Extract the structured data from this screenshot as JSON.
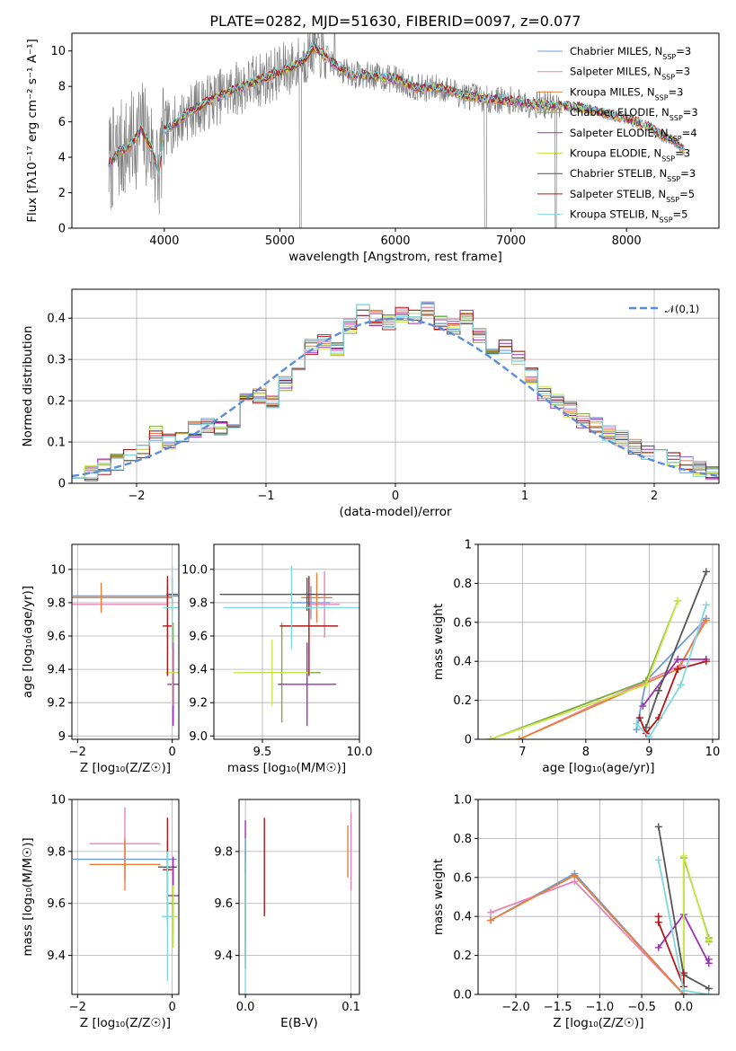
{
  "title": "PLATE=0282, MJD=51630, FIBERID=0097, z=0.077",
  "models": [
    {
      "name": "Chabrier MILES",
      "nssp": "3",
      "color": "#6f9bd8"
    },
    {
      "name": "Salpeter MILES",
      "nssp": "3",
      "color": "#e884b8"
    },
    {
      "name": "Kroupa MILES",
      "nssp": "3",
      "color": "#e8803a"
    },
    {
      "name": "Chabrier ELODIE",
      "nssp": "3",
      "color": "#7fa842"
    },
    {
      "name": "Salpeter ELODIE",
      "nssp": "4",
      "color": "#9b30b0"
    },
    {
      "name": "Kroupa ELODIE",
      "nssp": "3",
      "color": "#c8e84a"
    },
    {
      "name": "Chabrier STELIB",
      "nssp": "3",
      "color": "#555555"
    },
    {
      "name": "Salpeter STELIB",
      "nssp": "5",
      "color": "#b01818"
    },
    {
      "name": "Kroupa STELIB",
      "nssp": "5",
      "color": "#80d8e0"
    }
  ],
  "chart_data": [
    {
      "id": "spectrum",
      "type": "line",
      "xlabel": "wavelength [Angstrom, rest frame]",
      "ylabel": "Flux [fλ10⁻¹⁷ erg cm⁻² s⁻¹ A⁻¹]",
      "xlim": [
        3200,
        8800
      ],
      "ylim": [
        0,
        11
      ],
      "xticks": [
        4000,
        5000,
        6000,
        7000,
        8000
      ],
      "yticks": [
        0,
        2,
        4,
        6,
        8,
        10
      ],
      "continuum": [
        [
          3520,
          3.6
        ],
        [
          3600,
          4.3
        ],
        [
          3700,
          4.6
        ],
        [
          3800,
          5.6
        ],
        [
          3900,
          4.4
        ],
        [
          3950,
          3.0
        ],
        [
          4000,
          5.6
        ],
        [
          4100,
          5.9
        ],
        [
          4200,
          6.5
        ],
        [
          4400,
          7.2
        ],
        [
          4600,
          7.8
        ],
        [
          4800,
          8.3
        ],
        [
          5000,
          8.8
        ],
        [
          5200,
          9.4
        ],
        [
          5300,
          10.3
        ],
        [
          5400,
          9.6
        ],
        [
          5600,
          8.7
        ],
        [
          5800,
          8.6
        ],
        [
          6000,
          8.4
        ],
        [
          6200,
          7.9
        ],
        [
          6400,
          7.9
        ],
        [
          6600,
          7.5
        ],
        [
          6800,
          7.3
        ],
        [
          7000,
          7.2
        ],
        [
          7200,
          7.0
        ],
        [
          7400,
          6.9
        ],
        [
          7600,
          6.8
        ],
        [
          7800,
          6.5
        ],
        [
          8000,
          6.2
        ],
        [
          8200,
          5.7
        ],
        [
          8300,
          5.2
        ],
        [
          8400,
          5.0
        ],
        [
          8500,
          4.4
        ]
      ],
      "observed_range": [
        3520,
        7420
      ],
      "legend_position": "upper right"
    },
    {
      "id": "residual-histogram",
      "type": "line",
      "xlabel": "(data-model)/error",
      "ylabel": "Normed distribution",
      "xlim": [
        -2.5,
        2.5
      ],
      "ylim": [
        0,
        0.47
      ],
      "xticks": [
        -2,
        -1,
        0,
        1,
        2
      ],
      "yticks": [
        0.0,
        0.1,
        0.2,
        0.3,
        0.4
      ],
      "reference_label": "𝒩(0,1)",
      "reference_color": "#5b8ed6",
      "bins": [
        -2.5,
        -2.4,
        -2.3,
        -2.2,
        -2.1,
        -2.0,
        -1.9,
        -1.8,
        -1.7,
        -1.6,
        -1.5,
        -1.4,
        -1.3,
        -1.2,
        -1.1,
        -1.0,
        -0.9,
        -0.8,
        -0.7,
        -0.6,
        -0.5,
        -0.4,
        -0.3,
        -0.2,
        -0.1,
        0.0,
        0.1,
        0.2,
        0.3,
        0.4,
        0.5,
        0.6,
        0.7,
        0.8,
        0.9,
        1.0,
        1.1,
        1.2,
        1.3,
        1.4,
        1.5,
        1.6,
        1.7,
        1.8,
        1.9,
        2.0,
        2.1,
        2.2,
        2.3,
        2.4,
        2.5
      ],
      "heights": [
        0.018,
        0.025,
        0.04,
        0.05,
        0.062,
        0.075,
        0.12,
        0.1,
        0.115,
        0.13,
        0.14,
        0.13,
        0.135,
        0.22,
        0.21,
        0.2,
        0.24,
        0.26,
        0.33,
        0.34,
        0.32,
        0.38,
        0.42,
        0.4,
        0.39,
        0.41,
        0.4,
        0.425,
        0.39,
        0.38,
        0.4,
        0.36,
        0.33,
        0.33,
        0.3,
        0.26,
        0.22,
        0.2,
        0.18,
        0.15,
        0.14,
        0.12,
        0.11,
        0.09,
        0.075,
        0.065,
        0.055,
        0.045,
        0.035,
        0.025
      ],
      "legend_position": "upper right"
    },
    {
      "id": "age-vs-Z",
      "type": "scatter",
      "xlabel": "Z [log₁₀(Z/Z☉)]",
      "ylabel": "age  [log₁₀(age/yr)]",
      "xlim": [
        -2.12,
        0.14
      ],
      "ylim": [
        8.98,
        10.15
      ],
      "xticks": [
        -2,
        0
      ],
      "yticks": [
        9.0,
        9.2,
        9.4,
        9.6,
        9.8,
        10.0
      ],
      "points": [
        {
          "model": 0,
          "x": -0.1,
          "xerr": 2.0,
          "y": 9.84,
          "yerr": 0.06
        },
        {
          "model": 1,
          "x": -1.5,
          "xerr": 1.4,
          "y": 9.79,
          "yerr": 0.05
        },
        {
          "model": 2,
          "x": -1.5,
          "xerr": 1.5,
          "y": 9.83,
          "yerr": 0.09
        },
        {
          "model": 3,
          "x": 0.02,
          "xerr": 0.1,
          "y": 9.38,
          "yerr": 0.3
        },
        {
          "model": 4,
          "x": 0.02,
          "xerr": 0.12,
          "y": 9.31,
          "yerr": 0.25
        },
        {
          "model": 5,
          "x": 0.0,
          "xerr": 0.15,
          "y": 9.38,
          "yerr": 0.2
        },
        {
          "model": 6,
          "x": 0.0,
          "xerr": 0.12,
          "y": 9.85,
          "yerr": 0.1
        },
        {
          "model": 7,
          "x": -0.1,
          "xerr": 0.1,
          "y": 9.66,
          "yerr": 0.3
        },
        {
          "model": 8,
          "x": 0.0,
          "xerr": 0.2,
          "y": 9.77,
          "yerr": 0.25
        }
      ]
    },
    {
      "id": "age-vs-mass",
      "type": "scatter",
      "xlabel": "mass [log₁₀(M/M☉)]",
      "ylabel": "",
      "xlim": [
        9.25,
        10.0
      ],
      "ylim": [
        8.98,
        10.15
      ],
      "xticks": [
        9.5,
        10.0
      ],
      "yticks": [
        9.0,
        9.2,
        9.4,
        9.6,
        9.8,
        10.0
      ],
      "points": [
        {
          "model": 0,
          "x": 9.75,
          "xerr": 0.1,
          "y": 9.8,
          "yerr": 0.1
        },
        {
          "model": 1,
          "x": 9.82,
          "xerr": 0.08,
          "y": 9.79,
          "yerr": 0.2
        },
        {
          "model": 2,
          "x": 9.78,
          "xerr": 0.08,
          "y": 9.83,
          "yerr": 0.15
        },
        {
          "model": 3,
          "x": 9.6,
          "xerr": 0.2,
          "y": 9.38,
          "yerr": 0.3
        },
        {
          "model": 4,
          "x": 9.73,
          "xerr": 0.15,
          "y": 9.31,
          "yerr": 0.25
        },
        {
          "model": 5,
          "x": 9.55,
          "xerr": 0.2,
          "y": 9.38,
          "yerr": 0.2
        },
        {
          "model": 6,
          "x": 9.73,
          "xerr": 0.45,
          "y": 9.85,
          "yerr": 0.1
        },
        {
          "model": 7,
          "x": 9.74,
          "xerr": 0.15,
          "y": 9.66,
          "yerr": 0.3
        },
        {
          "model": 8,
          "x": 9.65,
          "xerr": 0.35,
          "y": 9.77,
          "yerr": 0.25
        }
      ]
    },
    {
      "id": "weight-vs-age",
      "type": "line",
      "xlabel": "age  [log₁₀(age/yr)]",
      "ylabel": "mass weight",
      "xlim": [
        6.3,
        10.1
      ],
      "ylim": [
        0,
        1.0
      ],
      "xticks": [
        7,
        8,
        9,
        10
      ],
      "yticks": [
        0.0,
        0.2,
        0.4,
        0.6,
        0.8,
        1.0
      ],
      "series": [
        {
          "model": 0,
          "points": [
            [
              8.8,
              0.05
            ],
            [
              8.95,
              0.3
            ],
            [
              9.9,
              0.62
            ]
          ]
        },
        {
          "model": 1,
          "points": [
            [
              6.95,
              0.0
            ],
            [
              9.5,
              0.38
            ],
            [
              9.85,
              0.6
            ]
          ]
        },
        {
          "model": 2,
          "points": [
            [
              6.95,
              0.0
            ],
            [
              9.45,
              0.36
            ],
            [
              9.9,
              0.61
            ]
          ]
        },
        {
          "model": 3,
          "points": [
            [
              6.5,
              0.0
            ],
            [
              8.95,
              0.3
            ],
            [
              9.45,
              0.71
            ]
          ]
        },
        {
          "model": 4,
          "points": [
            [
              8.9,
              0.17
            ],
            [
              9.45,
              0.41
            ],
            [
              9.9,
              0.41
            ]
          ]
        },
        {
          "model": 5,
          "points": [
            [
              6.5,
              0.0
            ],
            [
              8.95,
              0.28
            ],
            [
              9.45,
              0.71
            ]
          ]
        },
        {
          "model": 6,
          "points": [
            [
              8.95,
              0.06
            ],
            [
              9.15,
              0.25
            ],
            [
              9.9,
              0.86
            ]
          ]
        },
        {
          "model": 7,
          "points": [
            [
              8.85,
              0.11
            ],
            [
              8.95,
              0.03
            ],
            [
              9.15,
              0.11
            ],
            [
              9.45,
              0.36
            ],
            [
              9.9,
              0.4
            ]
          ]
        },
        {
          "model": 8,
          "points": [
            [
              8.8,
              0.08
            ],
            [
              9.0,
              0.01
            ],
            [
              9.5,
              0.28
            ],
            [
              9.9,
              0.69
            ]
          ]
        }
      ]
    },
    {
      "id": "mass-vs-Z",
      "type": "scatter",
      "xlabel": "Z [log₁₀(Z/Z☉)]",
      "ylabel": "mass [log₁₀(M/M☉)]",
      "xlim": [
        -2.12,
        0.14
      ],
      "ylim": [
        9.25,
        10.0
      ],
      "xticks": [
        -2,
        0
      ],
      "yticks": [
        9.4,
        9.6,
        9.8,
        10.0
      ],
      "points": [
        {
          "model": 0,
          "x": -1.0,
          "xerr": 1.1,
          "y": 9.77,
          "yerr": 0.07
        },
        {
          "model": 1,
          "x": -1.0,
          "xerr": 0.75,
          "y": 9.83,
          "yerr": 0.14
        },
        {
          "model": 2,
          "x": -1.0,
          "xerr": 0.75,
          "y": 9.75,
          "yerr": 0.1
        },
        {
          "model": 3,
          "x": 0.02,
          "xerr": 0.1,
          "y": 9.6,
          "yerr": 0.15
        },
        {
          "model": 4,
          "x": 0.02,
          "xerr": 0.12,
          "y": 9.63,
          "yerr": 0.15
        },
        {
          "model": 5,
          "x": 0.02,
          "xerr": 0.1,
          "y": 9.55,
          "yerr": 0.12
        },
        {
          "model": 6,
          "x": -0.1,
          "xerr": 0.2,
          "y": 9.74,
          "yerr": 0.1
        },
        {
          "model": 7,
          "x": -0.1,
          "xerr": 0.1,
          "y": 9.73,
          "yerr": 0.2
        },
        {
          "model": 8,
          "x": -0.1,
          "xerr": 0.12,
          "y": 9.55,
          "yerr": 0.25
        }
      ]
    },
    {
      "id": "mass-vs-EBV",
      "type": "scatter",
      "xlabel": "E(B-V)",
      "ylabel": "",
      "xlim": [
        -0.006,
        0.108
      ],
      "ylim": [
        9.25,
        10.0
      ],
      "xticks": [
        0.0,
        0.1
      ],
      "yticks": [
        9.4,
        9.6,
        9.8
      ],
      "points": [
        {
          "model": 0,
          "x": 0.0,
          "y": 9.77,
          "yerr": 0.07
        },
        {
          "model": 1,
          "x": 0.1,
          "y": 9.8,
          "yerr": 0.15
        },
        {
          "model": 2,
          "x": 0.097,
          "y": 9.8,
          "yerr": 0.1
        },
        {
          "model": 3,
          "x": 0.0,
          "y": 9.6,
          "yerr": 0.2
        },
        {
          "model": 4,
          "x": 0.0,
          "y": 9.82,
          "yerr": 0.1
        },
        {
          "model": 5,
          "x": 0.0,
          "y": 9.6,
          "yerr": 0.15
        },
        {
          "model": 6,
          "x": 0.0,
          "y": 9.6,
          "yerr": 0.25
        },
        {
          "model": 7,
          "x": 0.018,
          "y": 9.74,
          "yerr": 0.19
        },
        {
          "model": 8,
          "x": 0.0,
          "y": 9.55,
          "yerr": 0.3
        }
      ]
    },
    {
      "id": "weight-vs-Z",
      "type": "line",
      "xlabel": "Z [log₁₀(Z/Z☉)]",
      "ylabel": "mass weight",
      "xlim": [
        -2.45,
        0.42
      ],
      "ylim": [
        0,
        1.0
      ],
      "xticks": [
        -2.0,
        -1.5,
        -1.0,
        -0.5,
        0.0
      ],
      "yticks": [
        0.0,
        0.2,
        0.4,
        0.6,
        0.8,
        1.0
      ],
      "series": [
        {
          "model": 0,
          "points": [
            [
              -2.3,
              0.38
            ],
            [
              -1.3,
              0.62
            ],
            [
              0.0,
              0.0
            ]
          ]
        },
        {
          "model": 1,
          "points": [
            [
              -2.3,
              0.42
            ],
            [
              -1.3,
              0.58
            ],
            [
              0.0,
              0.0
            ]
          ]
        },
        {
          "model": 2,
          "points": [
            [
              -2.3,
              0.38
            ],
            [
              -1.3,
              0.61
            ],
            [
              0.0,
              0.0
            ]
          ]
        },
        {
          "model": 3,
          "points": [
            [
              0.0,
              0.02
            ],
            [
              0.0,
              0.7
            ],
            [
              0.3,
              0.29
            ],
            [
              0.3,
              0.27
            ]
          ]
        },
        {
          "model": 4,
          "points": [
            [
              -0.3,
              0.24
            ],
            [
              0.0,
              0.41
            ],
            [
              0.3,
              0.16
            ],
            [
              0.3,
              0.18
            ]
          ]
        },
        {
          "model": 5,
          "points": [
            [
              0.0,
              0.02
            ],
            [
              0.0,
              0.71
            ],
            [
              0.3,
              0.28
            ]
          ]
        },
        {
          "model": 6,
          "points": [
            [
              -0.3,
              0.86
            ],
            [
              0.0,
              0.1
            ],
            [
              0.3,
              0.03
            ]
          ]
        },
        {
          "model": 7,
          "points": [
            [
              -0.3,
              0.4
            ],
            [
              -0.3,
              0.37
            ],
            [
              0.0,
              0.04
            ],
            [
              0.0,
              0.11
            ],
            [
              0.0,
              0.0
            ]
          ]
        },
        {
          "model": 8,
          "points": [
            [
              -0.3,
              0.69
            ],
            [
              0.0,
              0.02
            ],
            [
              0.3,
              0.0
            ]
          ]
        }
      ]
    }
  ]
}
